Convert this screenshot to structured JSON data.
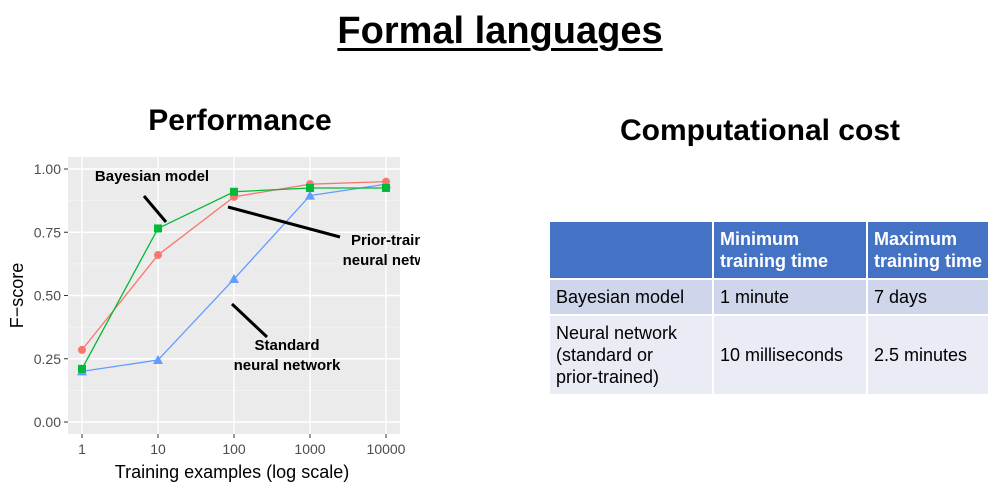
{
  "slide_title": "Formal languages",
  "performance_title": "Performance",
  "cost_title": "Computational cost",
  "chart_data": {
    "type": "line",
    "title": "",
    "xlabel": "Training examples (log scale)",
    "ylabel": "F−score",
    "x_scale": "log",
    "categories": [
      "1",
      "10",
      "100",
      "1000",
      "10000"
    ],
    "x": [
      1,
      10,
      100,
      1000,
      10000
    ],
    "ylim": [
      0,
      1
    ],
    "yticks": [
      "0.00",
      "0.25",
      "0.50",
      "0.75",
      "1.00"
    ],
    "grid": true,
    "series": [
      {
        "name": "Bayesian model",
        "color": "#00ba38",
        "marker": "square",
        "values": [
          0.21,
          0.765,
          0.91,
          0.925,
          0.925
        ]
      },
      {
        "name": "Prior-trained neural network",
        "color": "#f8766d",
        "marker": "circle",
        "values": [
          0.285,
          0.66,
          0.89,
          0.94,
          0.95
        ]
      },
      {
        "name": "Standard neural network",
        "color": "#619cff",
        "marker": "triangle",
        "values": [
          0.2,
          0.245,
          0.565,
          0.895,
          0.94
        ]
      }
    ],
    "annotations": [
      {
        "lines": [
          "Bayesian model"
        ]
      },
      {
        "lines": [
          "Prior-trained",
          "neural network"
        ]
      },
      {
        "lines": [
          "Standard",
          "neural network"
        ]
      }
    ]
  },
  "cost_table": {
    "headers": [
      "",
      "Minimum training time",
      "Maximum training time"
    ],
    "header_lines": [
      [
        ""
      ],
      [
        "Minimum",
        "training time"
      ],
      [
        "Maximum",
        "training time"
      ]
    ],
    "rows": [
      [
        "Bayesian model",
        "1 minute",
        "7 days"
      ],
      [
        "Neural network (standard or prior-trained)",
        "10 milliseconds",
        "2.5 minutes"
      ]
    ],
    "row_lines": [
      [
        [
          "Bayesian model"
        ],
        [
          "1 minute"
        ],
        [
          "7 days"
        ]
      ],
      [
        [
          "Neural network",
          "(standard or",
          "prior-trained)"
        ],
        [
          "10 milliseconds"
        ],
        [
          "2.5 minutes"
        ]
      ]
    ]
  }
}
